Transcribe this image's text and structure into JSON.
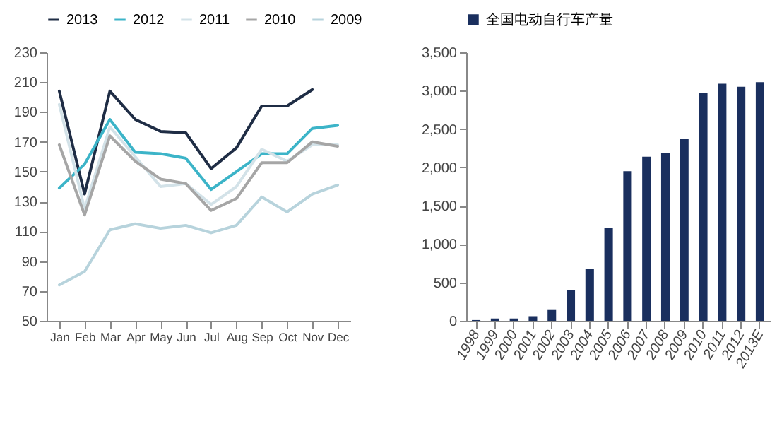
{
  "chart_data": [
    {
      "type": "line",
      "categories": [
        "Jan",
        "Feb",
        "Mar",
        "Apr",
        "May",
        "Jun",
        "Jul",
        "Aug",
        "Sep",
        "Oct",
        "Nov",
        "Dec"
      ],
      "ylim": [
        50,
        230
      ],
      "yticks": [
        50,
        70,
        90,
        110,
        130,
        150,
        170,
        190,
        210,
        230
      ],
      "legend": "top",
      "series": [
        {
          "name": "2013",
          "color": "#1f2d45",
          "values": [
            204,
            135,
            204,
            185,
            177,
            176,
            152,
            166,
            194,
            194,
            205,
            null
          ]
        },
        {
          "name": "2012",
          "color": "#3cb4c8",
          "values": [
            139,
            155,
            185,
            163,
            162,
            159,
            138,
            150,
            162,
            162,
            179,
            181
          ]
        },
        {
          "name": "2011",
          "color": "#d3e2e8",
          "values": [
            195,
            125,
            180,
            160,
            140,
            142,
            128,
            140,
            165,
            157,
            168,
            168
          ]
        },
        {
          "name": "2010",
          "color": "#a6a6a6",
          "values": [
            168,
            121,
            174,
            157,
            145,
            142,
            124,
            132,
            156,
            156,
            170,
            167
          ]
        },
        {
          "name": "2009",
          "color": "#b7d3dc",
          "values": [
            74,
            83,
            111,
            115,
            112,
            114,
            109,
            114,
            133,
            123,
            135,
            141
          ]
        }
      ]
    },
    {
      "type": "bar",
      "categories": [
        "1998",
        "1999",
        "2000",
        "2001",
        "2002",
        "2003",
        "2004",
        "2005",
        "2006",
        "2007",
        "2008",
        "2009",
        "2010",
        "2011",
        "2012",
        "2013E"
      ],
      "ylim": [
        0,
        3500
      ],
      "yticks": [
        0,
        {
          "value": 500,
          "label": "500"
        },
        {
          "value": 1000,
          "label": "1,000"
        },
        {
          "value": 1500,
          "label": "1,500"
        },
        {
          "value": 2000,
          "label": "2,000"
        },
        {
          "value": 2500,
          "label": "2,500"
        },
        {
          "value": 3000,
          "label": "3,000"
        },
        {
          "value": 3500,
          "label": "3,500"
        }
      ],
      "legend": "top",
      "series": [
        {
          "name": "全国电动自行车产量",
          "color": "#1a2f5e",
          "values": [
            10,
            30,
            30,
            60,
            150,
            400,
            680,
            1210,
            1950,
            2140,
            2190,
            2370,
            2970,
            3090,
            3050,
            3110
          ]
        }
      ]
    }
  ]
}
